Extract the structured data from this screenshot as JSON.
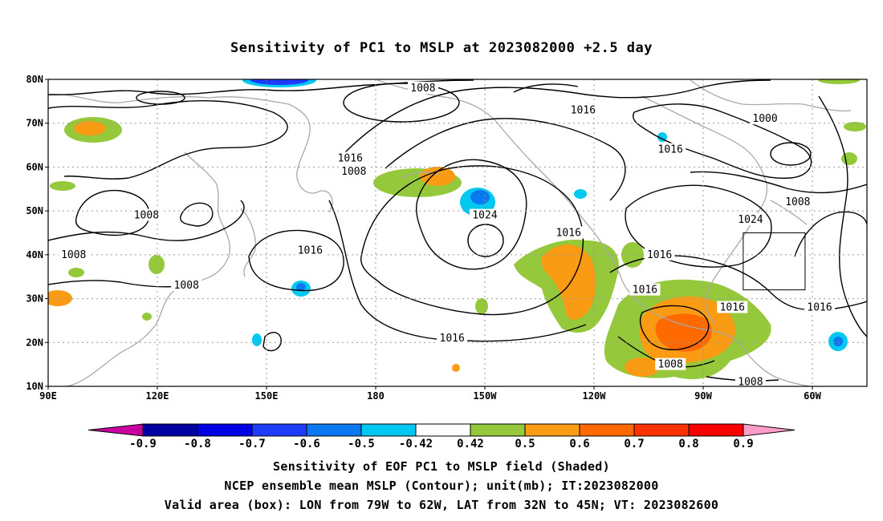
{
  "title": "Sensitivity of PC1 to MSLP at 2023082000 +2.5 day",
  "lat_ticks": [
    "80N",
    "70N",
    "60N",
    "50N",
    "40N",
    "30N",
    "20N",
    "10N"
  ],
  "lon_ticks": [
    "90E",
    "120E",
    "150E",
    "180",
    "150W",
    "120W",
    "90W",
    "60W"
  ],
  "contour_labels": [
    {
      "text": "1008",
      "lon": 193,
      "lat": 78
    },
    {
      "text": "1016",
      "lon": -123,
      "lat": 73
    },
    {
      "text": "1000",
      "lon": -73,
      "lat": 71
    },
    {
      "text": "1016",
      "lon": 173,
      "lat": 62
    },
    {
      "text": "1008",
      "lon": 174,
      "lat": 59
    },
    {
      "text": "1016",
      "lon": -99,
      "lat": 64
    },
    {
      "text": "1008",
      "lon": -64,
      "lat": 52
    },
    {
      "text": "1008",
      "lon": 117,
      "lat": 49
    },
    {
      "text": "1024",
      "lon": -150,
      "lat": 49
    },
    {
      "text": "1024",
      "lon": -77,
      "lat": 48
    },
    {
      "text": "1016",
      "lon": -127,
      "lat": 45
    },
    {
      "text": "1016",
      "lon": 162,
      "lat": 41
    },
    {
      "text": "1008",
      "lon": 97,
      "lat": 40
    },
    {
      "text": "1016",
      "lon": -102,
      "lat": 40
    },
    {
      "text": "1016",
      "lon": -106,
      "lat": 32
    },
    {
      "text": "1008",
      "lon": 128,
      "lat": 33
    },
    {
      "text": "1016",
      "lon": -82,
      "lat": 28
    },
    {
      "text": "1016",
      "lon": -58,
      "lat": 28
    },
    {
      "text": "1016",
      "lon": -159,
      "lat": 21
    },
    {
      "text": "1008",
      "lon": -99,
      "lat": 15
    },
    {
      "text": "1008",
      "lon": -77,
      "lat": 11
    }
  ],
  "colorbar": {
    "labels": [
      "-0.9",
      "-0.8",
      "-0.7",
      "-0.6",
      "-0.5",
      "-0.42",
      "0.42",
      "0.5",
      "0.6",
      "0.7",
      "0.8",
      "0.9"
    ],
    "colors": [
      "#0000a0",
      "#0000e6",
      "#1e3cff",
      "#0a78f0",
      "#00c8f0",
      "#ffffff",
      "#96c83c",
      "#fa9b14",
      "#ff6a00",
      "#ff3200",
      "#ff0000"
    ],
    "low_color": "#c800a0",
    "high_color": "#ff9ec8"
  },
  "box": {
    "lon_min": -79,
    "lon_max": -62,
    "lat_min": 32,
    "lat_max": 45
  },
  "caption": [
    "Sensitivity of EOF PC1 to MSLP field (Shaded)",
    "NCEP ensemble mean MSLP (Contour); unit(mb); IT:2023082000",
    "Valid area (box): LON from 79W to 62W, LAT from 32N to 45N; VT: 2023082600"
  ]
}
